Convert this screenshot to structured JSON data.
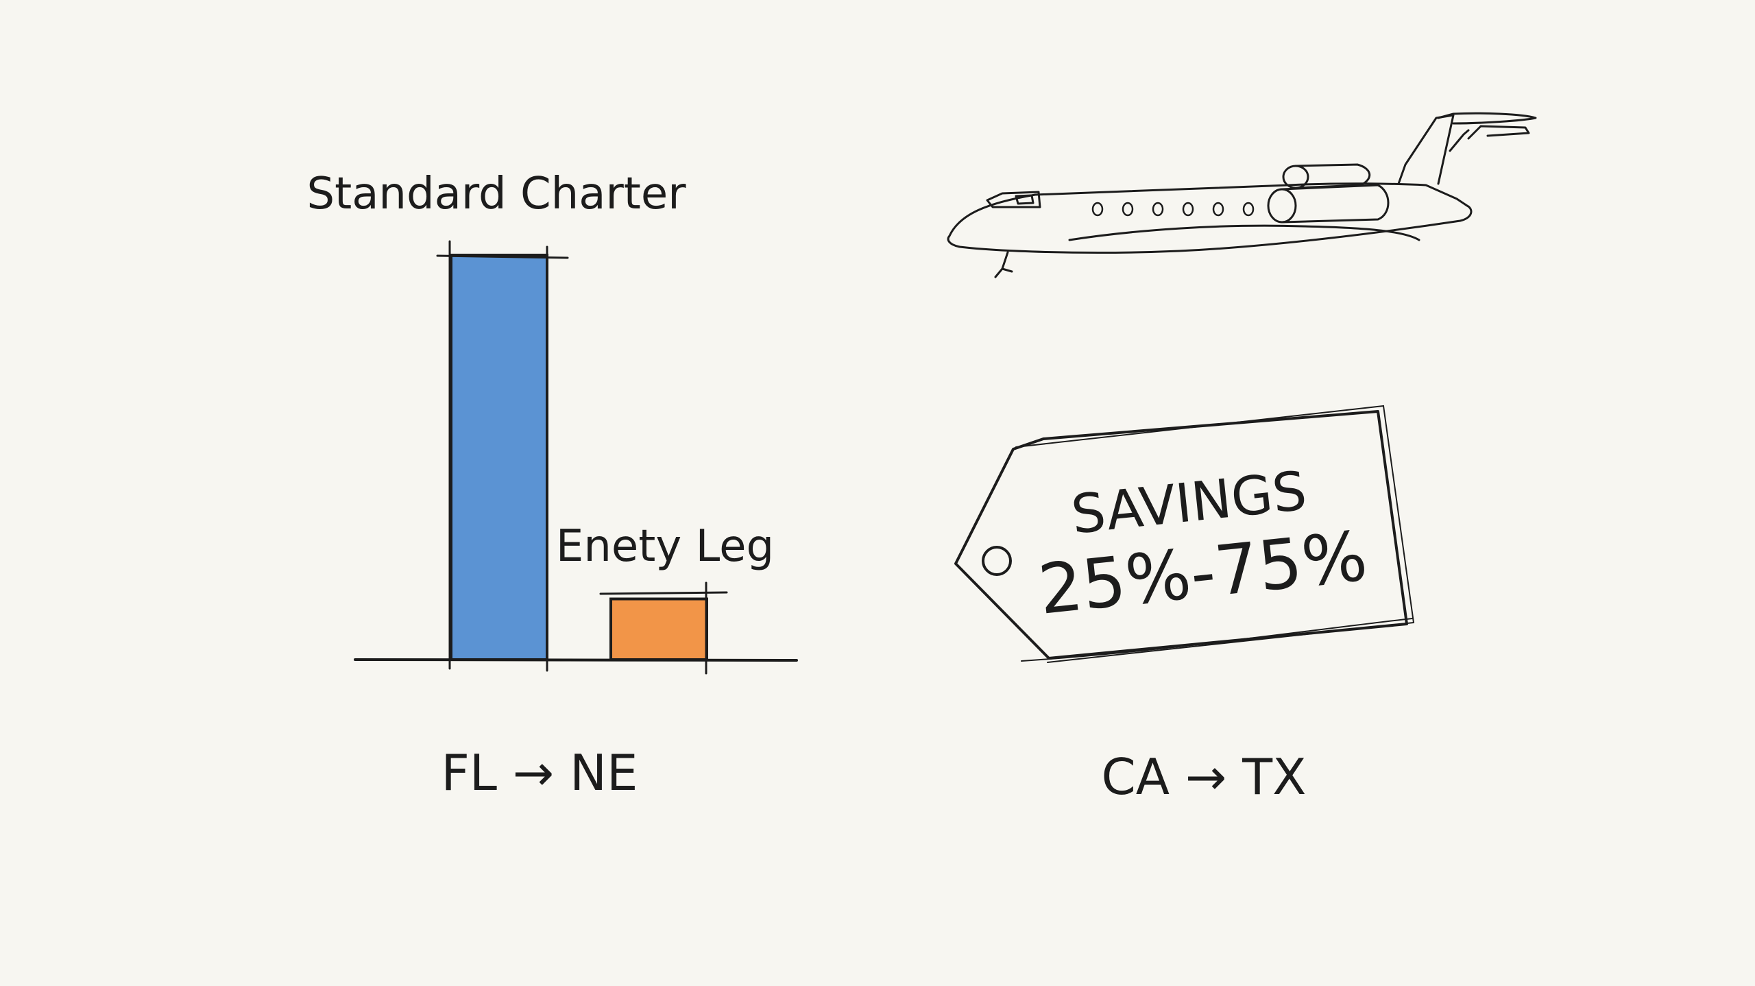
{
  "chart_data": {
    "type": "bar",
    "categories": [
      "Standard Charter",
      "Enety Leg"
    ],
    "values": [
      100,
      15
    ],
    "ylim": [
      0,
      100
    ],
    "grid": false,
    "legend": "none",
    "colors": [
      "#5b93d3",
      "#f29548"
    ],
    "route_label": "FL → NE"
  },
  "illustration": {
    "icon": "private-jet-icon",
    "tag": {
      "title": "SAVINGS",
      "value": "25%-75%"
    },
    "route_label": "CA → TX"
  },
  "colors": {
    "paper": "#f7f6f1",
    "ink": "#1c1c1c"
  }
}
